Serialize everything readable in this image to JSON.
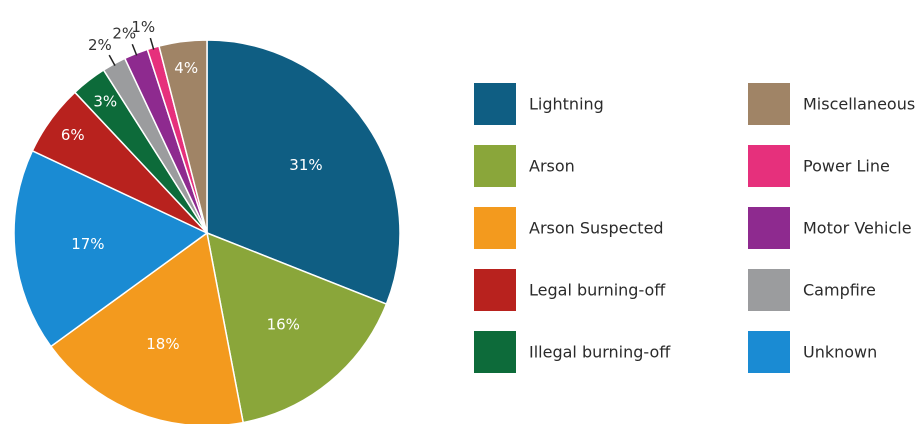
{
  "chart_data": {
    "type": "pie",
    "title": "",
    "legend_position": "right",
    "slices": [
      {
        "label": "Lightning",
        "value": 31,
        "display": "31%",
        "color": "#0f5e83"
      },
      {
        "label": "Arson",
        "value": 16,
        "display": "16%",
        "color": "#8aa63a"
      },
      {
        "label": "Arson Suspected",
        "value": 18,
        "display": "18%",
        "color": "#f39a1e"
      },
      {
        "label": "Unknown",
        "value": 17,
        "display": "17%",
        "color": "#1a8bd3"
      },
      {
        "label": "Legal burning-off",
        "value": 6,
        "display": "6%",
        "color": "#b8221e"
      },
      {
        "label": "Illegal burning-off",
        "value": 3,
        "display": "3%",
        "color": "#0d6b3a"
      },
      {
        "label": "Campfire",
        "value": 2,
        "display": "2%",
        "color": "#9b9c9e"
      },
      {
        "label": "Motor Vehicle",
        "value": 2,
        "display": "2%",
        "color": "#8e2a8f"
      },
      {
        "label": "Power Line",
        "value": 1,
        "display": "1%",
        "color": "#e6307c"
      },
      {
        "label": "Miscellaneous",
        "value": 4,
        "display": "4%",
        "color": "#a08466"
      }
    ],
    "legend": {
      "columns": [
        [
          "Lightning",
          "Arson",
          "Arson Suspected",
          "Legal burning-off",
          "Illegal burning-off"
        ],
        [
          "Miscellaneous",
          "Power Line",
          "Motor Vehicle",
          "Campfire",
          "Unknown"
        ]
      ]
    }
  }
}
